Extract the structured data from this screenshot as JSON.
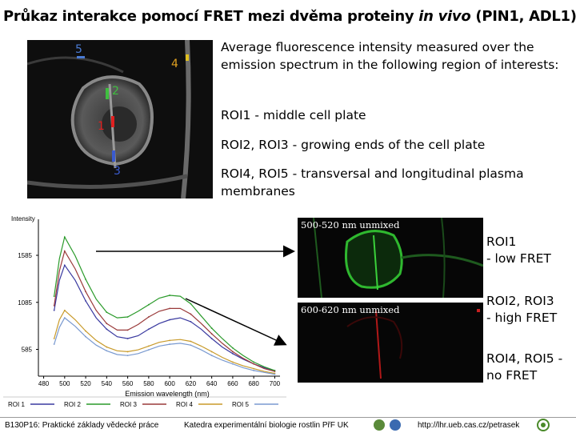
{
  "title": {
    "main": "Průkaz interakce pomocí FRET mezi dvěma proteiny ",
    "italic": "in vivo",
    "tail": " (PIN1, ADL1)"
  },
  "micrograph": {
    "roi_labels": [
      {
        "text": "5",
        "color": "#4a7bd4"
      },
      {
        "text": "4",
        "color": "#e0a020"
      },
      {
        "text": "2",
        "color": "#3fbf3f"
      },
      {
        "text": "1",
        "color": "#e02020"
      },
      {
        "text": "3",
        "color": "#3a5bd0"
      }
    ]
  },
  "description": {
    "intro": "Average fluorescence intensity measured over the emission spectrum in the following region of interests:",
    "roi1": "ROI1 - middle cell plate",
    "roi23": "ROI2, ROI3 - growing ends of the cell plate",
    "roi45": "ROI4, ROI5 - transversal and longitudinal plasma membranes"
  },
  "chart_data": {
    "type": "line",
    "ylabel": "Intensity",
    "xlabel": "Emission wavelength (nm)",
    "y_ticks": [
      1585,
      1085,
      585
    ],
    "x_ticks": [
      480,
      500,
      520,
      540,
      560,
      580,
      600,
      620,
      640,
      660,
      680,
      700
    ],
    "x": [
      490,
      495,
      500,
      510,
      520,
      530,
      540,
      550,
      560,
      570,
      580,
      590,
      600,
      610,
      620,
      630,
      640,
      650,
      660,
      670,
      680,
      690,
      700
    ],
    "series": [
      {
        "name": "ROI 1",
        "color": "#3a3aa0",
        "values": [
          1000,
          1320,
          1480,
          1320,
          1100,
          920,
          800,
          720,
          700,
          730,
          800,
          860,
          900,
          920,
          880,
          800,
          700,
          610,
          540,
          480,
          430,
          390,
          360
        ]
      },
      {
        "name": "ROI 2",
        "color": "#2a9a2a",
        "values": [
          1150,
          1550,
          1780,
          1580,
          1330,
          1120,
          980,
          920,
          930,
          990,
          1060,
          1130,
          1160,
          1150,
          1070,
          940,
          810,
          700,
          600,
          520,
          450,
          400,
          360
        ]
      },
      {
        "name": "ROI 3",
        "color": "#9a3a3a",
        "values": [
          1050,
          1420,
          1630,
          1440,
          1200,
          1000,
          860,
          790,
          790,
          850,
          930,
          990,
          1020,
          1020,
          960,
          860,
          750,
          650,
          560,
          490,
          430,
          380,
          350
        ]
      },
      {
        "name": "ROI 4",
        "color": "#c89a2a",
        "values": [
          700,
          900,
          1000,
          900,
          780,
          680,
          610,
          570,
          560,
          580,
          620,
          660,
          680,
          690,
          670,
          620,
          560,
          500,
          450,
          410,
          380,
          350,
          330
        ]
      },
      {
        "name": "ROI 5",
        "color": "#7a9ad0",
        "values": [
          640,
          820,
          920,
          830,
          720,
          630,
          570,
          530,
          520,
          540,
          580,
          620,
          640,
          650,
          630,
          580,
          520,
          470,
          430,
          390,
          360,
          340,
          320
        ]
      }
    ],
    "ylim": [
      300,
      1900
    ],
    "xlim": [
      475,
      705
    ],
    "legend": [
      "ROI 1",
      "ROI 2",
      "ROI 3",
      "ROI 4",
      "ROI 5"
    ],
    "legend_placement": "bottom"
  },
  "panels": {
    "top_label": "500-520 nm unmixed",
    "bottom_label": "600-620 nm unmixed",
    "top_color": "#2fb82f",
    "bottom_color": "#c82020"
  },
  "fret": {
    "roi1_a": "ROI1",
    "roi1_b": "- low FRET",
    "roi23_a": "ROI2, ROI3",
    "roi23_b": "- high FRET",
    "roi45_a": "ROI4, ROI5 -",
    "roi45_b": "no FRET"
  },
  "footer": {
    "course": "B130P16: Praktické základy vědecké práce",
    "dept": "Katedra experimentální biologie rostlin PřF UK",
    "url": "http://lhr.ueb.cas.cz/petrasek"
  }
}
